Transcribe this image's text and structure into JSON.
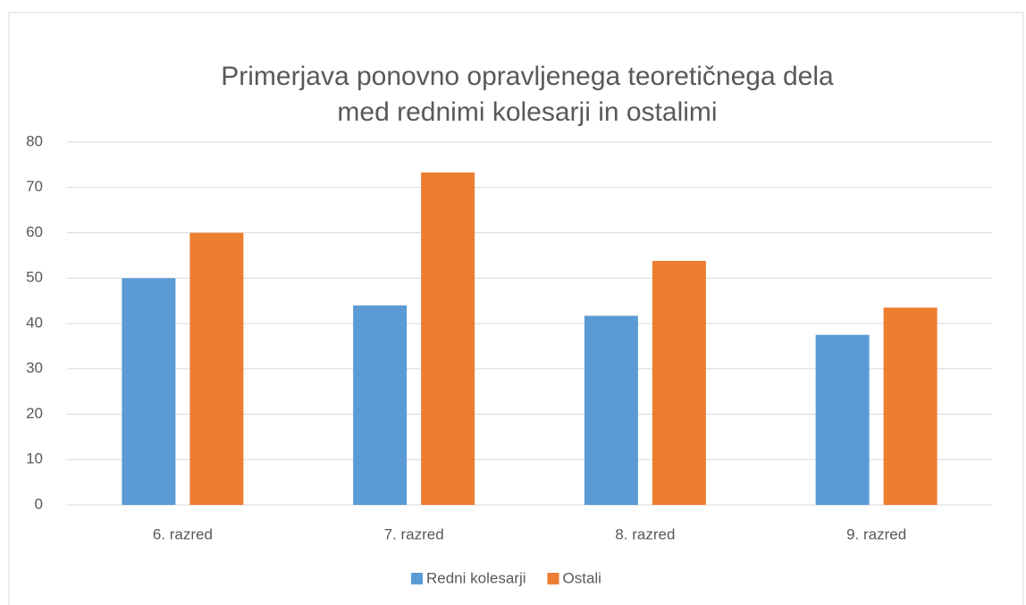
{
  "chart_data": {
    "type": "bar",
    "title": "Primerjava ponovno opravljenega teoretičnega dela med rednimi kolesarji in ostalimi",
    "categories": [
      "6. razred",
      "7. razred",
      "8. razred",
      "9. razred"
    ],
    "series": [
      {
        "name": "Redni kolesarji",
        "color": "#5b9bd5",
        "values": [
          50,
          44,
          41.7,
          37.5
        ]
      },
      {
        "name": "Ostali",
        "color": "#ed7d31",
        "values": [
          60,
          73.3,
          53.8,
          43.5
        ]
      }
    ],
    "ylim": [
      0,
      80
    ],
    "yticks": [
      0,
      10,
      20,
      30,
      40,
      50,
      60,
      70,
      80
    ],
    "grid": true,
    "legend": "bottom"
  }
}
